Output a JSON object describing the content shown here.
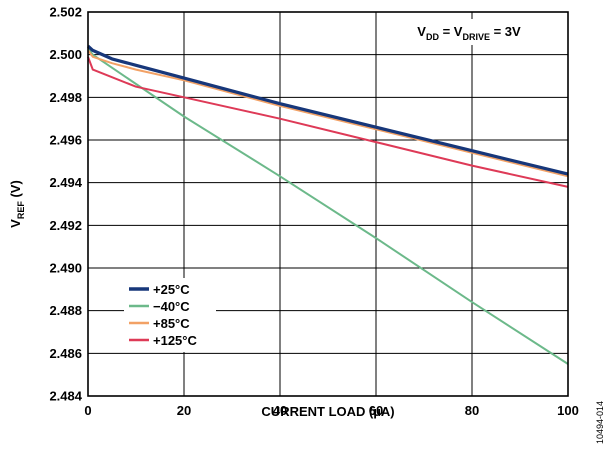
{
  "chart_data": {
    "type": "line",
    "xlabel": "CURRENT LOAD (µA)",
    "ylabel": "V",
    "ylabel_sub": "REF",
    "ylabel_suffix": " (V)",
    "xlim": [
      0,
      100
    ],
    "ylim": [
      2.484,
      2.502
    ],
    "xticks": [
      0,
      20,
      40,
      60,
      80,
      100
    ],
    "yticks": [
      2.484,
      2.486,
      2.488,
      2.49,
      2.492,
      2.494,
      2.496,
      2.498,
      2.5,
      2.502
    ],
    "xtick_labels": [
      "0",
      "20",
      "40",
      "60",
      "80",
      "100"
    ],
    "ytick_labels": [
      "2.484",
      "2.486",
      "2.488",
      "2.490",
      "2.492",
      "2.494",
      "2.496",
      "2.498",
      "2.500",
      "2.502"
    ],
    "grid": true,
    "legend_position": "bottom-left",
    "annotation": {
      "parts": [
        {
          "text": "V",
          "sub": false
        },
        {
          "text": "DD",
          "sub": true
        },
        {
          "text": " = V",
          "sub": false
        },
        {
          "text": "DRIVE",
          "sub": true
        },
        {
          "text": " = 3V",
          "sub": false
        }
      ]
    },
    "figure_id": "10494-014",
    "series": [
      {
        "name": "+25°C",
        "color": "#17377a",
        "width": 3.2,
        "x": [
          0,
          1,
          5,
          10,
          20,
          40,
          60,
          80,
          100
        ],
        "y": [
          2.5004,
          2.5002,
          2.4998,
          2.4995,
          2.4989,
          2.4977,
          2.4966,
          2.4955,
          2.4944
        ]
      },
      {
        "name": "−40°C",
        "color": "#6cb98a",
        "width": 2,
        "x": [
          0,
          1,
          20,
          40,
          60,
          80,
          100
        ],
        "y": [
          2.5003,
          2.5,
          2.4971,
          2.4943,
          2.4914,
          2.4884,
          2.4855
        ]
      },
      {
        "name": "+85°C",
        "color": "#f2a165",
        "width": 2,
        "x": [
          0,
          1,
          5,
          10,
          20,
          40,
          60,
          80,
          100
        ],
        "y": [
          2.5002,
          2.4999,
          2.4996,
          2.4993,
          2.4988,
          2.4976,
          2.4965,
          2.4954,
          2.4943
        ]
      },
      {
        "name": "+125°C",
        "color": "#de3a57",
        "width": 2,
        "x": [
          0,
          1,
          10,
          20,
          40,
          60,
          80,
          100
        ],
        "y": [
          2.4999,
          2.4993,
          2.4985,
          2.498,
          2.497,
          2.4959,
          2.4948,
          2.4938
        ]
      }
    ]
  }
}
